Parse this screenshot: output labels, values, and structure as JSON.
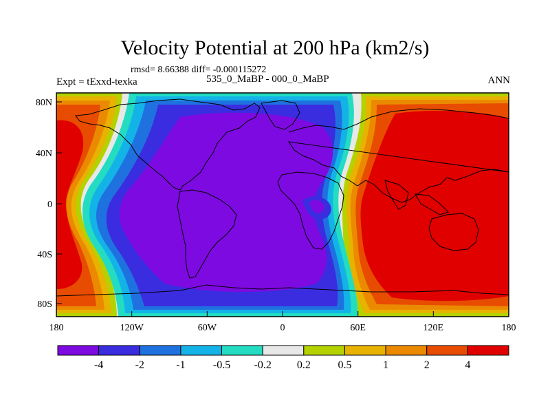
{
  "header": {
    "title": "Velocity Potential at 200 hPa (km2/s)",
    "stats": "rmsd= 8.66388 diff= -0.000115272",
    "experiment": "Expt = tExxd-texka",
    "case": "535_0_MaBP - 000_0_MaBP",
    "season": "ANN"
  },
  "map": {
    "lon_ticks": [
      "180",
      "120W",
      "60W",
      "0",
      "60E",
      "120E",
      "180"
    ],
    "lat_ticks": [
      "80N",
      "40N",
      "0",
      "40S",
      "80S"
    ]
  },
  "colorbar": {
    "colors": [
      "#7d0ae0",
      "#3a2de0",
      "#1f71e0",
      "#13b3e8",
      "#23dcc2",
      "#e8e8e8",
      "#b4d200",
      "#e8b200",
      "#eb8a00",
      "#e84c00",
      "#e00000"
    ],
    "labels": [
      "-4",
      "-2",
      "-1",
      "-0.5",
      "-0.2",
      "0.2",
      "0.5",
      "1",
      "2",
      "4"
    ]
  }
}
